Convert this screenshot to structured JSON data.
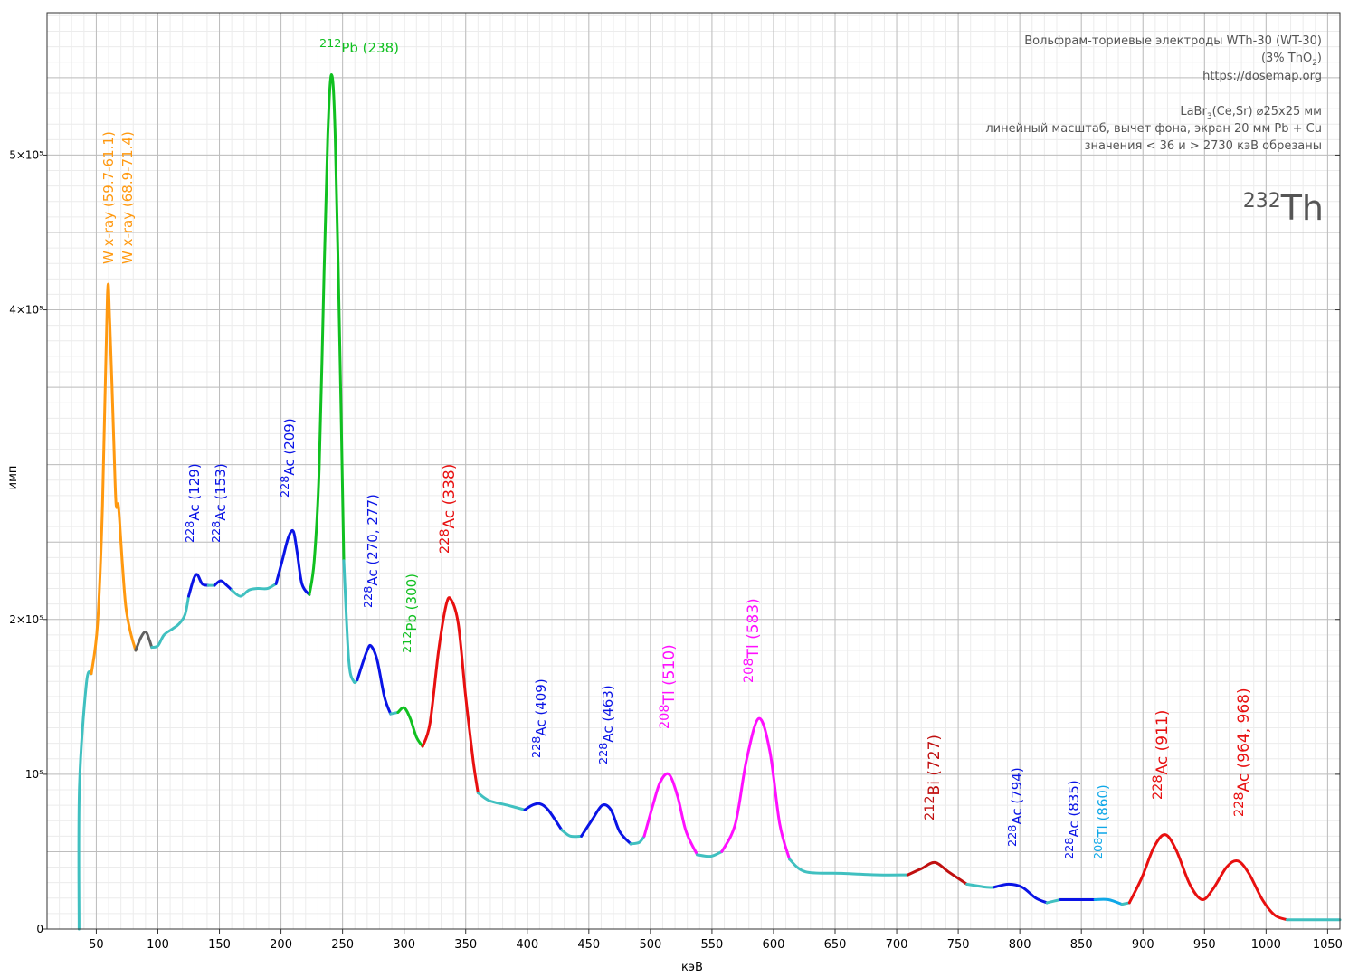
{
  "chart_data": {
    "type": "line",
    "x_label": "кэВ",
    "y_label": "имп",
    "xlim": [
      10,
      1060
    ],
    "ylim": [
      0,
      592000
    ],
    "xticks": [
      50,
      100,
      150,
      200,
      250,
      300,
      350,
      400,
      450,
      500,
      550,
      600,
      650,
      700,
      750,
      800,
      850,
      900,
      950,
      1000,
      1050
    ],
    "yticks": [
      {
        "value": 0,
        "label": "0"
      },
      {
        "value": 100000,
        "label": "10⁵"
      },
      {
        "value": 200000,
        "label": "2×10⁵"
      },
      {
        "value": 400000,
        "label": "4×10⁵"
      },
      {
        "value": 500000,
        "label": "5×10⁵"
      }
    ],
    "grid": {
      "x_major": 50,
      "x_minor": 10,
      "y_major": 50000,
      "y_minor": 10000
    },
    "series": [
      {
        "color": "#40c0c0",
        "x": [
          36,
          36.3,
          42,
          46
        ],
        "values": [
          0,
          92000,
          159000,
          165000
        ]
      },
      {
        "color": "#ff9910",
        "x": [
          46,
          51,
          55,
          59,
          61,
          64,
          66,
          68,
          71,
          74,
          78,
          82
        ],
        "values": [
          165000,
          197000,
          273000,
          409000,
          391000,
          320000,
          275000,
          273000,
          238000,
          208000,
          191000,
          180000
        ]
      },
      {
        "color": "#606060",
        "x": [
          82,
          86,
          90,
          93,
          95
        ],
        "values": [
          180000,
          188000,
          192000,
          187000,
          182000
        ]
      },
      {
        "color": "#40c0c0",
        "x": [
          95,
          100,
          105,
          112,
          117,
          122,
          125
        ],
        "values": [
          182000,
          183000,
          190000,
          194000,
          197000,
          203000,
          215000
        ]
      },
      {
        "color": "#0a14e6",
        "x": [
          125,
          129,
          132,
          136,
          141
        ],
        "values": [
          215000,
          226000,
          229000,
          223000,
          222000
        ]
      },
      {
        "color": "#40c0c0",
        "x": [
          141,
          146
        ],
        "values": [
          222000,
          222000
        ]
      },
      {
        "color": "#0a14e6",
        "x": [
          146,
          151,
          156,
          160
        ],
        "values": [
          222000,
          225000,
          222000,
          219000
        ]
      },
      {
        "color": "#40c0c0",
        "x": [
          160,
          167,
          174,
          181,
          189,
          196
        ],
        "values": [
          219000,
          215000,
          219000,
          220000,
          220000,
          223000
        ]
      },
      {
        "color": "#0a14e6",
        "x": [
          196,
          201,
          206,
          210,
          213,
          217,
          223
        ],
        "values": [
          223000,
          238000,
          253000,
          257000,
          244000,
          223000,
          216000
        ]
      },
      {
        "color": "#10c020",
        "x": [
          223,
          227,
          231,
          235,
          238,
          241,
          244,
          248,
          251
        ],
        "values": [
          216000,
          238000,
          297000,
          425000,
          513000,
          552000,
          513000,
          367000,
          238000
        ]
      },
      {
        "color": "#40c0c0",
        "x": [
          251,
          255,
          259,
          262
        ],
        "values": [
          238000,
          174000,
          160000,
          161000
        ]
      },
      {
        "color": "#0a14e6",
        "x": [
          262,
          266,
          270,
          273,
          278,
          284,
          289
        ],
        "values": [
          161000,
          171000,
          180000,
          183000,
          174000,
          150000,
          139000
        ]
      },
      {
        "color": "#40c0c0",
        "x": [
          289,
          295
        ],
        "values": [
          139000,
          140000
        ]
      },
      {
        "color": "#10c020",
        "x": [
          295,
          300,
          305,
          310,
          315
        ],
        "values": [
          140000,
          143000,
          136000,
          124000,
          118000
        ]
      },
      {
        "color": "#e81010",
        "x": [
          315,
          321,
          328,
          334,
          338,
          344,
          350,
          356,
          360
        ],
        "values": [
          118000,
          133000,
          180000,
          209000,
          213000,
          197000,
          150000,
          109000,
          88000
        ]
      },
      {
        "color": "#40c0c0",
        "x": [
          360,
          369,
          384,
          398
        ],
        "values": [
          88000,
          83000,
          80000,
          77000
        ]
      },
      {
        "color": "#0a14e6",
        "x": [
          398,
          404,
          410,
          417,
          428
        ],
        "values": [
          77000,
          80000,
          81000,
          77000,
          64000
        ]
      },
      {
        "color": "#40c0c0",
        "x": [
          428,
          435,
          444
        ],
        "values": [
          64000,
          60000,
          60000
        ]
      },
      {
        "color": "#0a14e6",
        "x": [
          444,
          453,
          461,
          468,
          475,
          484
        ],
        "values": [
          60000,
          71000,
          80000,
          77000,
          63000,
          55000
        ]
      },
      {
        "color": "#40c0c0",
        "x": [
          484,
          491,
          495
        ],
        "values": [
          55000,
          56000,
          60000
        ]
      },
      {
        "color": "#ff10ff",
        "x": [
          495,
          502,
          508,
          515,
          522,
          529,
          538
        ],
        "values": [
          60000,
          80000,
          95000,
          100000,
          86000,
          63000,
          48000
        ]
      },
      {
        "color": "#40c0c0",
        "x": [
          538,
          549,
          558
        ],
        "values": [
          48000,
          47000,
          50000
        ]
      },
      {
        "color": "#ff10ff",
        "x": [
          558,
          569,
          578,
          588,
          597,
          605,
          613
        ],
        "values": [
          50000,
          68000,
          109000,
          136000,
          115000,
          68000,
          45000
        ]
      },
      {
        "color": "#40c0c0",
        "x": [
          613,
          626,
          655,
          685,
          709
        ],
        "values": [
          45000,
          37000,
          36000,
          35000,
          35000
        ]
      },
      {
        "color": "#c01010",
        "x": [
          709,
          720,
          731,
          742,
          757
        ],
        "values": [
          35000,
          39000,
          43000,
          37000,
          29000
        ]
      },
      {
        "color": "#40c0c0",
        "x": [
          757,
          773,
          779
        ],
        "values": [
          29000,
          27000,
          27000
        ]
      },
      {
        "color": "#0a14e6",
        "x": [
          779,
          791,
          802,
          813,
          822
        ],
        "values": [
          27000,
          29000,
          27000,
          20000,
          17000
        ]
      },
      {
        "color": "#40c0c0",
        "x": [
          822,
          833
        ],
        "values": [
          17000,
          19000
        ]
      },
      {
        "color": "#0a14e6",
        "x": [
          833,
          850,
          861
        ],
        "values": [
          19000,
          19000,
          19000
        ]
      },
      {
        "color": "#10a8e8",
        "x": [
          861,
          872,
          883
        ],
        "values": [
          19000,
          19000,
          16000
        ]
      },
      {
        "color": "#40c0c0",
        "x": [
          883,
          889
        ],
        "values": [
          16000,
          17000
        ]
      },
      {
        "color": "#e81010",
        "x": [
          889,
          899,
          909,
          918,
          927,
          938,
          948,
          957,
          968,
          977,
          986,
          997,
          1007,
          1017
        ],
        "values": [
          17000,
          33000,
          53000,
          61000,
          51000,
          29000,
          19000,
          26000,
          40000,
          44000,
          36000,
          19000,
          9000,
          6000
        ]
      },
      {
        "color": "#40c0c0",
        "x": [
          1017,
          1060
        ],
        "values": [
          6000,
          6000
        ]
      }
    ],
    "annotations": [
      {
        "text": "W x-ray (59.7-61.1)",
        "color": "#ff9910"
      },
      {
        "text": "W x-ray (68.9-71.4)",
        "color": "#ff9910"
      },
      {
        "mass": "228",
        "text": "Ac (129)",
        "color": "#0a14e6"
      },
      {
        "mass": "228",
        "text": "Ac (153)",
        "color": "#0a14e6"
      },
      {
        "mass": "228",
        "text": "Ac (209)",
        "color": "#0a14e6"
      },
      {
        "mass": "212",
        "text": "Pb (238)",
        "color": "#10c020"
      },
      {
        "mass": "228",
        "text": "Ac (270, 277)",
        "color": "#0a14e6"
      },
      {
        "mass": "212",
        "text": "Pb (300)",
        "color": "#10c020"
      },
      {
        "mass": "228",
        "text": "Ac (338)",
        "color": "#e81010"
      },
      {
        "mass": "228",
        "text": "Ac (409)",
        "color": "#0a14e6"
      },
      {
        "mass": "228",
        "text": "Ac (463)",
        "color": "#0a14e6"
      },
      {
        "mass": "208",
        "text": "Tl (510)",
        "color": "#ff10ff"
      },
      {
        "mass": "208",
        "text": "Tl (583)",
        "color": "#ff10ff"
      },
      {
        "mass": "212",
        "text": "Bi (727)",
        "color": "#c01010"
      },
      {
        "mass": "228",
        "text": "Ac (794)",
        "color": "#0a14e6"
      },
      {
        "mass": "228",
        "text": "Ac (835)",
        "color": "#0a14e6"
      },
      {
        "mass": "208",
        "text": "Tl (860)",
        "color": "#10a8e8"
      },
      {
        "mass": "228",
        "text": "Ac (911)",
        "color": "#e81010"
      },
      {
        "mass": "228",
        "text": "Ac (964, 968)",
        "color": "#e81010"
      }
    ],
    "info": [
      [
        {
          "text": "Вольфрам-ториевые электроды WTh-30 (WT-30)"
        }
      ],
      [
        {
          "text": "(3% ThO"
        },
        {
          "text": "2",
          "shift": "sub"
        },
        {
          "text": ")"
        }
      ],
      [
        {
          "text": "https://dosemap.org"
        }
      ],
      [
        {
          "text": "LaBr"
        },
        {
          "text": "3",
          "shift": "sub"
        },
        {
          "text": "(Ce,Sr) ⌀25x25 мм"
        }
      ],
      [
        {
          "text": "линейный масштаб, вычет фона, экран 20 мм Pb + Cu"
        }
      ],
      [
        {
          "text": "значения < 36 и > 2730 кэВ обрезаны"
        }
      ]
    ],
    "isotope": {
      "mass": "232",
      "name": "Th"
    }
  }
}
